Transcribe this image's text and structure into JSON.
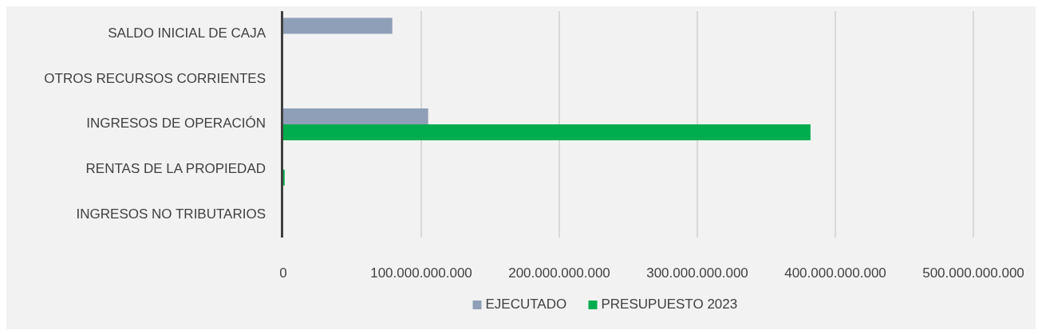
{
  "chart_data": {
    "type": "bar",
    "orientation": "horizontal",
    "categories": [
      "SALDO INICIAL DE CAJA",
      "OTROS RECURSOS CORRIENTES",
      "INGRESOS DE OPERACIÓN",
      "RENTAS DE LA PROPIEDAD",
      "INGRESOS NO TRIBUTARIOS"
    ],
    "series": [
      {
        "name": "EJECUTADO",
        "color": "#8f9fb8",
        "values": [
          79000000000,
          null,
          105000000000,
          null,
          null
        ]
      },
      {
        "name": "PRESUPUESTO 2023",
        "color": "#00ad4e",
        "values": [
          null,
          null,
          382000000000,
          1000000000,
          null
        ]
      }
    ],
    "xlim": [
      0,
      500000000000
    ],
    "xticks": [
      0,
      {
        "value": 100000000000,
        "label": "100.000.000.000"
      },
      {
        "value": 200000000000,
        "label": "200.000.000.000"
      },
      {
        "value": 300000000000,
        "label": "300.000.000.000"
      },
      {
        "value": 400000000000,
        "label": "400.000.000.000"
      },
      {
        "value": 500000000000,
        "label": "500.000.000.000"
      }
    ],
    "grid": "x",
    "legend": "bottom"
  }
}
